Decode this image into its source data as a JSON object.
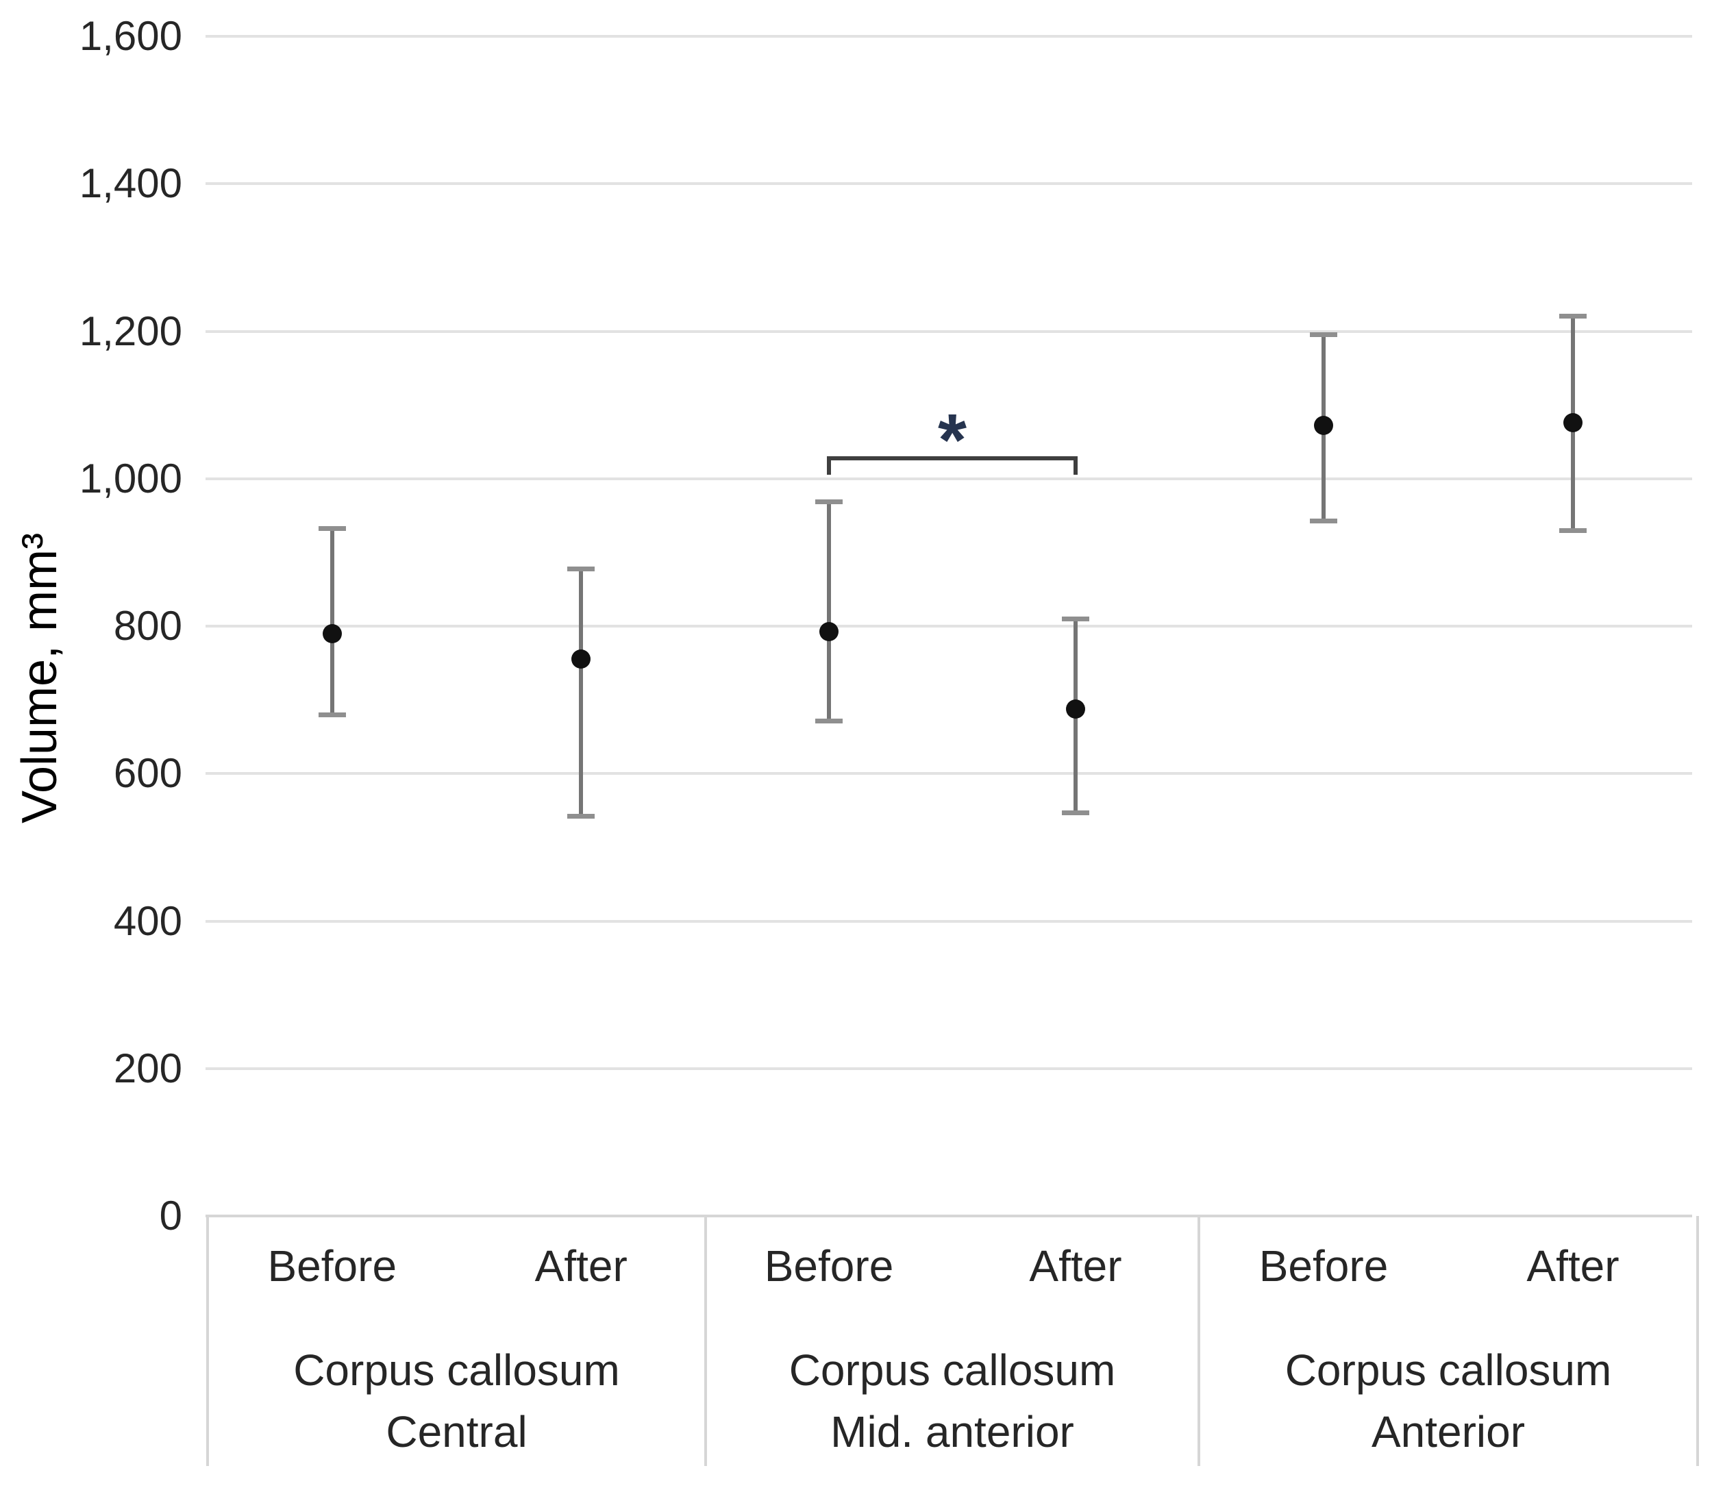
{
  "chart_data": {
    "type": "scatter",
    "title": "",
    "xlabel": "",
    "ylabel": "Volume, mm³",
    "ylim": [
      0,
      1600
    ],
    "ytick_step": 200,
    "ytick_labels": [
      "0",
      "200",
      "400",
      "600",
      "800",
      "1,000",
      "1,200",
      "1,400",
      "1,600"
    ],
    "grid": true,
    "legend": "none",
    "groups": [
      {
        "name_lines": [
          "Corpus callosum",
          "Central"
        ],
        "points": [
          {
            "label": "Before",
            "mean": 790,
            "upper": 933,
            "lower": 680
          },
          {
            "label": "After",
            "mean": 755,
            "upper": 878,
            "lower": 543
          }
        ]
      },
      {
        "name_lines": [
          "Corpus callosum",
          "Mid. anterior"
        ],
        "significance_marker": "*",
        "points": [
          {
            "label": "Before",
            "mean": 793,
            "upper": 969,
            "lower": 672
          },
          {
            "label": "After",
            "mean": 688,
            "upper": 810,
            "lower": 547
          }
        ]
      },
      {
        "name_lines": [
          "Corpus callosum",
          "Anterior"
        ],
        "points": [
          {
            "label": "Before",
            "mean": 1072,
            "upper": 1196,
            "lower": 943
          },
          {
            "label": "After",
            "mean": 1076,
            "upper": 1221,
            "lower": 930
          }
        ]
      }
    ]
  },
  "colors": {
    "background": "#ffffff",
    "gridline": "#e2e2e2",
    "axis_line": "#d6d6d6",
    "error_bar_line": "#757575",
    "error_bar_cap": "#8f8f8f",
    "data_point": "#111111",
    "bracket": "#3f3f3f",
    "asterisk": "#26344f",
    "text": "#262626"
  }
}
